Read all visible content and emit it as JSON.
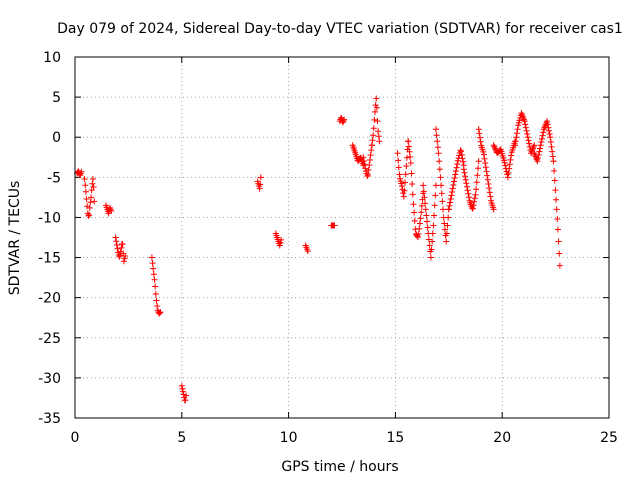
{
  "chart_data": {
    "type": "scatter",
    "title": "Day 079 of 2024, Sidereal Day-to-day VTEC variation (SDTVAR) for receiver cas1",
    "xlabel": "GPS time / hours",
    "ylabel": "SDTVAR / TECUs",
    "xlim": [
      0,
      25
    ],
    "ylim": [
      -35,
      10
    ],
    "xticks": [
      0,
      5,
      10,
      15,
      20,
      25
    ],
    "yticks": [
      10,
      5,
      0,
      -5,
      -10,
      -15,
      -20,
      -25,
      -30,
      -35
    ],
    "grid": true,
    "marker": "+",
    "color": "#ff0000",
    "segments": [
      {
        "x0": 0.1,
        "x1": 0.3,
        "y": [
          -4.5,
          -4.2,
          -4.8,
          -4.3
        ]
      },
      {
        "x0": 0.45,
        "x1": 0.9,
        "y": [
          -5.2,
          -6.5,
          -8.0,
          -9.5,
          -10.0,
          -8.5,
          -7.5,
          -6.0,
          -5.0,
          -8.0
        ]
      },
      {
        "x0": 1.45,
        "x1": 1.7,
        "y": [
          -8.5,
          -9.0,
          -9.5,
          -8.8,
          -9.2
        ]
      },
      {
        "x0": 1.9,
        "x1": 2.35,
        "y": [
          -12.5,
          -13.5,
          -14.5,
          -15.0,
          -14.0,
          -13.0,
          -15.5,
          -14.8
        ]
      },
      {
        "x0": 3.6,
        "x1": 4.0,
        "y": [
          -15.0,
          -16.5,
          -18.0,
          -20.0,
          -21.5,
          -22.0,
          -21.8
        ]
      },
      {
        "x0": 5.0,
        "x1": 5.2,
        "y": [
          -31.0,
          -31.5,
          -32.0,
          -32.5,
          -33.0,
          -32.2
        ]
      },
      {
        "x0": 8.55,
        "x1": 8.7,
        "y": [
          -5.5,
          -6.0,
          -6.5,
          -5.0
        ]
      },
      {
        "x0": 9.4,
        "x1": 9.65,
        "y": [
          -12.0,
          -12.5,
          -13.0,
          -13.5,
          -12.8
        ]
      },
      {
        "x0": 10.8,
        "x1": 10.9,
        "y": [
          -13.5,
          -14.2
        ]
      },
      {
        "x0": 12.0,
        "x1": 12.15,
        "y": [
          -11.0,
          -11.0
        ]
      },
      {
        "x0": 12.4,
        "x1": 12.6,
        "y": [
          2.0,
          2.5,
          1.8,
          2.2
        ]
      },
      {
        "x0": 13.0,
        "x1": 13.5,
        "y": [
          -1.0,
          -2.0,
          -3.0,
          -2.5,
          -3.5
        ]
      },
      {
        "x0": 13.5,
        "x1": 13.9,
        "y": [
          -2.5,
          -4.0,
          -5.0,
          -3.0,
          -1.0
        ]
      },
      {
        "x0": 13.9,
        "x1": 14.25,
        "y": [
          -1.0,
          0.5,
          3.0,
          5.0,
          1.0,
          -0.5
        ]
      },
      {
        "x0": 15.1,
        "x1": 15.6,
        "y": [
          -2.0,
          -5.0,
          -6.0,
          -7.5,
          -4.0,
          -0.5
        ]
      },
      {
        "x0": 15.6,
        "x1": 16.3,
        "y": [
          -0.5,
          -3.0,
          -8.0,
          -12.0,
          -12.5,
          -10.0,
          -7.0
        ]
      },
      {
        "x0": 16.3,
        "x1": 16.9,
        "y": [
          -6.0,
          -9.0,
          -12.0,
          -15.0,
          -11.0,
          -6.0
        ]
      },
      {
        "x0": 16.9,
        "x1": 17.5,
        "y": [
          1.0,
          -2.0,
          -6.0,
          -10.0,
          -13.0,
          -9.0
        ]
      },
      {
        "x0": 17.5,
        "x1": 18.2,
        "y": [
          -9.0,
          -7.0,
          -5.0,
          -3.0,
          -1.5,
          -3.5
        ]
      },
      {
        "x0": 18.2,
        "x1": 18.9,
        "y": [
          -4.0,
          -6.0,
          -8.0,
          -9.0,
          -7.0,
          -3.0
        ]
      },
      {
        "x0": 18.9,
        "x1": 19.6,
        "y": [
          1.0,
          -1.0,
          -2.0,
          -4.0,
          -6.0,
          -8.0,
          -9.0
        ]
      },
      {
        "x0": 19.6,
        "x1": 20.6,
        "y": [
          -1.0,
          -2.0,
          -1.5,
          -3.0,
          -5.0,
          -2.0,
          -0.5
        ]
      },
      {
        "x0": 20.6,
        "x1": 21.5,
        "y": [
          -1.0,
          1.5,
          3.0,
          2.0,
          0.0,
          -2.0,
          -1.0
        ]
      },
      {
        "x0": 21.5,
        "x1": 22.4,
        "y": [
          -2.0,
          -3.0,
          -1.0,
          1.0,
          2.0,
          0.0,
          -3.0
        ]
      },
      {
        "x0": 22.4,
        "x1": 22.7,
        "y": [
          -3.0,
          -5.0,
          -7.0,
          -9.0,
          -11.0,
          -13.5,
          -16.0
        ]
      }
    ]
  }
}
